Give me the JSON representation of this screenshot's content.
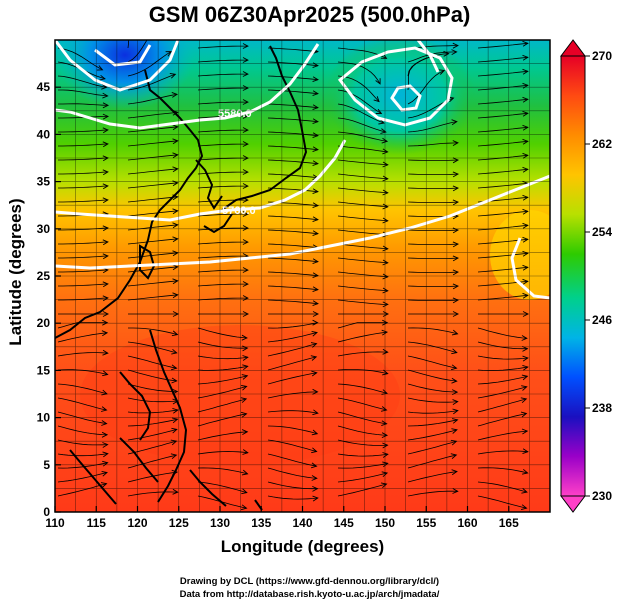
{
  "title": "GSM 06Z30Apr2025 (500.0hPa)",
  "xlabel": "Longitude (degrees)",
  "ylabel": "Latitude  (degrees)",
  "credits": [
    "Drawing by DCL (https://www.gfd-dennou.org/library/dcl/)",
    "Data from http://database.rish.kyoto-u.ac.jp/arch/jmadata/"
  ],
  "map": {
    "lon_range": [
      110,
      170
    ],
    "lat_range": [
      0,
      50
    ],
    "x_ticks": [
      "110",
      "115",
      "120",
      "125",
      "130",
      "135",
      "140",
      "145",
      "150",
      "155",
      "160",
      "165"
    ],
    "y_ticks": [
      "0",
      "5",
      "10",
      "15",
      "20",
      "25",
      "30",
      "35",
      "40",
      "45"
    ],
    "contour_labels": [
      "5580.0",
      "5760.0"
    ],
    "colorbar": {
      "ticks": [
        "270",
        "262",
        "254",
        "246",
        "238",
        "230"
      ],
      "colors": [
        "#e60026",
        "#ff4a12",
        "#ff8c00",
        "#ffc400",
        "#b8e000",
        "#2ecb00",
        "#00d08c",
        "#00b4e6",
        "#0050ff",
        "#1a10c0",
        "#9a00c8",
        "#ff40c8"
      ]
    }
  }
}
